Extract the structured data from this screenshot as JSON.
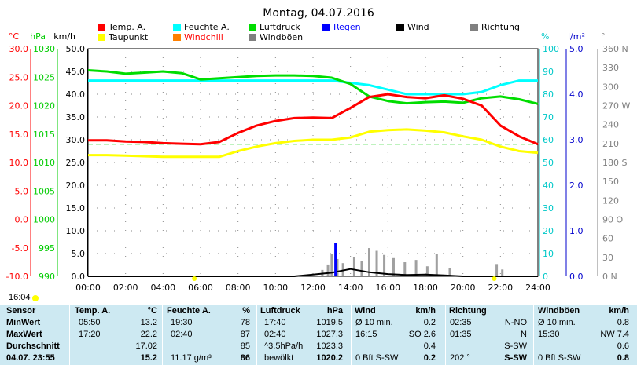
{
  "chart_data": {
    "type": "line",
    "title": "Montag, 04.07.2016",
    "x_ticks": [
      "00:00",
      "02:00",
      "04:00",
      "06:00",
      "08:00",
      "10:00",
      "12:00",
      "14:00",
      "16:00",
      "18:00",
      "20:00",
      "22:00",
      "24:00"
    ],
    "left_axes": [
      {
        "unit": "°C",
        "color": "#ff0000",
        "ticks": [
          "30.0",
          "25.0",
          "20.0",
          "15.0",
          "10.0",
          "5.0",
          "0.0",
          "-5.0",
          "-10.0"
        ]
      },
      {
        "unit": "hPa",
        "color": "#00cc00",
        "ticks": [
          "1030",
          "1025",
          "1020",
          "1015",
          "1010",
          "1005",
          "1000",
          "995",
          "990"
        ]
      },
      {
        "unit": "km/h",
        "color": "#000000",
        "ticks": [
          "50.0",
          "45.0",
          "40.0",
          "35.0",
          "30.0",
          "25.0",
          "20.0",
          "15.0",
          "10.0",
          "5.0",
          "0.0"
        ]
      }
    ],
    "right_axes": [
      {
        "unit": "%",
        "color": "#00c8c8",
        "ticks": [
          "100",
          "90",
          "80",
          "70",
          "60",
          "50",
          "40",
          "30",
          "20",
          "10",
          "0"
        ]
      },
      {
        "unit": "l/m²",
        "color": "#0000cc",
        "ticks": [
          "5.0",
          "4.0",
          "3.0",
          "2.0",
          "1.0",
          "0.0"
        ]
      },
      {
        "unit": "°",
        "color": "#808080",
        "ticks": [
          "360 N",
          "330",
          "300",
          "270 W",
          "240",
          "210",
          "180 S",
          "150",
          "120",
          "90 O",
          "60",
          "30",
          "0 N"
        ]
      }
    ],
    "legend": [
      {
        "name": "Temp. A.",
        "color": "#ff0000"
      },
      {
        "name": "Feuchte A.",
        "color": "#00ffff"
      },
      {
        "name": "Luftdruck",
        "color": "#00dd00"
      },
      {
        "name": "Regen",
        "color": "#0000ff",
        "label_color": "#0000ff"
      },
      {
        "name": "Wind",
        "color": "#000000"
      },
      {
        "name": "Richtung",
        "color": "#808080"
      },
      {
        "name": "Taupunkt",
        "color": "#ffff00"
      },
      {
        "name": "Windchill",
        "color": "#ff8000",
        "label_color": "#ff0000"
      },
      {
        "name": "Windböen",
        "color": "#808080"
      }
    ],
    "series": [
      {
        "name": "Temp. A.",
        "color": "#ff0000",
        "unit": "°C",
        "x": [
          0,
          1,
          2,
          3,
          4,
          5,
          6,
          7,
          8,
          9,
          10,
          11,
          12,
          13,
          14,
          15,
          16,
          17,
          18,
          19,
          20,
          21,
          22,
          23,
          24
        ],
        "y": [
          13.9,
          13.9,
          13.7,
          13.6,
          13.4,
          13.3,
          13.2,
          13.6,
          15.2,
          16.5,
          17.3,
          17.8,
          17.9,
          17.8,
          19.6,
          21.5,
          22.0,
          21.5,
          21.3,
          21.8,
          21.2,
          20.0,
          16.5,
          14.6,
          13.2
        ]
      },
      {
        "name": "Taupunkt",
        "color": "#ffff00",
        "unit": "°C",
        "x": [
          0,
          1,
          2,
          3,
          4,
          5,
          6,
          7,
          8,
          9,
          10,
          11,
          12,
          13,
          14,
          15,
          16,
          17,
          18,
          19,
          20,
          21,
          22,
          23,
          24
        ],
        "y": [
          11.3,
          11.3,
          11.2,
          11.1,
          11.0,
          11.0,
          11.0,
          11.0,
          12.0,
          12.8,
          13.4,
          13.8,
          14.0,
          14.0,
          14.4,
          15.4,
          15.7,
          15.8,
          15.6,
          15.3,
          14.6,
          14.0,
          12.8,
          12.0,
          11.7
        ]
      },
      {
        "name": "Feuchte A.",
        "color": "#00ffff",
        "unit": "%",
        "x": [
          0,
          1,
          2,
          3,
          4,
          5,
          6,
          7,
          8,
          9,
          10,
          11,
          12,
          13,
          14,
          15,
          16,
          17,
          18,
          19,
          20,
          21,
          22,
          23,
          24
        ],
        "y": [
          86,
          86,
          86,
          86,
          86,
          86,
          86,
          86,
          86,
          86,
          86,
          86,
          86,
          86,
          85,
          84,
          82,
          80,
          80,
          80,
          80,
          81,
          84,
          86,
          86
        ]
      },
      {
        "name": "Luftdruck",
        "color": "#00dd00",
        "unit": "hPa",
        "x": [
          0,
          1,
          2,
          3,
          4,
          5,
          6,
          7,
          8,
          9,
          10,
          11,
          12,
          13,
          14,
          15,
          16,
          17,
          18,
          19,
          20,
          21,
          22,
          23,
          24
        ],
        "y": [
          1026.2,
          1026.0,
          1025.6,
          1025.8,
          1026.0,
          1025.7,
          1024.6,
          1024.8,
          1025.0,
          1025.2,
          1025.3,
          1025.3,
          1025.2,
          1024.9,
          1023.8,
          1021.6,
          1020.8,
          1020.4,
          1020.6,
          1020.7,
          1020.5,
          1021.3,
          1021.6,
          1021.1,
          1020.3
        ]
      },
      {
        "name": "Wind",
        "color": "#000000",
        "unit": "km/h",
        "x": [
          0,
          11,
          12,
          13,
          14,
          15,
          16,
          17,
          18,
          19,
          20,
          21,
          22,
          23,
          24
        ],
        "y": [
          0,
          0,
          0.4,
          0.8,
          1.6,
          0.9,
          0.5,
          0.3,
          0.4,
          0.2,
          0,
          0,
          0,
          0,
          0
        ]
      }
    ],
    "rain_markers_hours": [
      13.2
    ],
    "humidity_reference": 58,
    "grid": true
  },
  "time_now": "16:04",
  "table": {
    "header": {
      "sensor": "Sensor",
      "temp": "Temp. A.",
      "temp_unit": "°C",
      "feuchte": "Feuchte A.",
      "feuchte_unit": "%",
      "luftdruck": "Luftdruck",
      "luftdruck_unit": "hPa",
      "wind": "Wind",
      "wind_unit": "km/h",
      "richtung": "Richtung",
      "boeen": "Windböen",
      "boeen_unit": "km/h"
    },
    "rows": [
      {
        "label": "MinWert",
        "t_time": "05:50",
        "t_val": "13.2",
        "f_time": "19:30",
        "f_val": "78",
        "l_time": "17:40",
        "l_val": "1019.5",
        "w_time": "Ø 10 min.",
        "w_val": "0.2",
        "r_time": "02:35",
        "r_val": "N-NO",
        "b_time": "Ø 10 min.",
        "b_val": "0.8"
      },
      {
        "label": "MaxWert",
        "t_time": "17:20",
        "t_val": "22.2",
        "f_time": "02:40",
        "f_val": "87",
        "l_time": "02:40",
        "l_val": "1027.3",
        "w_time": "16:15",
        "w_val": "SO 2.6",
        "r_time": "01:35",
        "r_val": "N",
        "b_time": "15:30",
        "b_val": "NW 7.4"
      },
      {
        "label": "Durchschnitt",
        "t_time": "",
        "t_val": "17.02",
        "f_time": "",
        "f_val": "85",
        "l_time": "^3.5hPa/h",
        "l_val": "1023.3",
        "w_time": "",
        "w_val": "0.4",
        "r_time": "",
        "r_val": "S-SW",
        "b_time": "",
        "b_val": "0.6"
      },
      {
        "label": "04.07. 23:55",
        "t_time": "",
        "t_val": "15.2",
        "f_time": "11.17 g/m³",
        "f_val": "86",
        "l_time": "bewölkt",
        "l_val": "1020.2",
        "w_time": "0 Bft S-SW",
        "w_val": "0.2",
        "r_time": "202 °",
        "r_val": "S-SW",
        "b_time": "0 Bft S-SW",
        "b_val": "0.8"
      }
    ]
  }
}
